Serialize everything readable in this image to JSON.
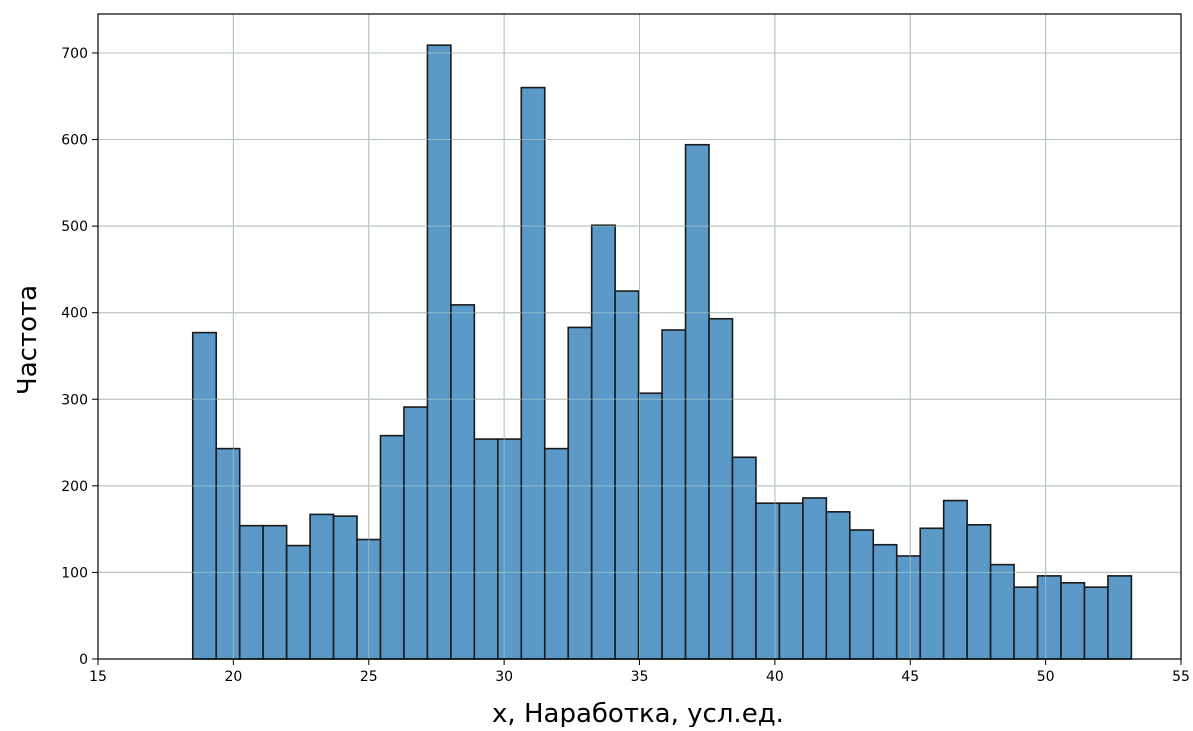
{
  "chart_data": {
    "type": "bar",
    "title": "",
    "xlabel": "x, Наработка, усл.ед.",
    "ylabel": "Частота",
    "xlim": [
      15,
      55
    ],
    "ylim": [
      0,
      745
    ],
    "grid": true,
    "bar_color": "#5b9ac8",
    "edge_color": "#1a1a1a",
    "bin_width": 0.8667,
    "bin_start": 18.5,
    "x_ticks": [
      15,
      20,
      25,
      30,
      35,
      40,
      45,
      50,
      55
    ],
    "x_tick_labels": [
      "15",
      "20",
      "25",
      "30",
      "35",
      "40",
      "45",
      "50",
      "55"
    ],
    "y_ticks": [
      0,
      100,
      200,
      300,
      400,
      500,
      600,
      700
    ],
    "y_tick_labels": [
      "0",
      "100",
      "200",
      "300",
      "400",
      "500",
      "600",
      "700"
    ],
    "values": [
      377,
      243,
      154,
      154,
      131,
      167,
      165,
      138,
      258,
      291,
      709,
      409,
      254,
      254,
      660,
      243,
      383,
      501,
      425,
      307,
      380,
      594,
      393,
      233,
      180,
      180,
      186,
      170,
      149,
      132,
      119,
      151,
      183,
      155,
      109,
      83,
      96,
      88,
      83,
      96
    ]
  }
}
